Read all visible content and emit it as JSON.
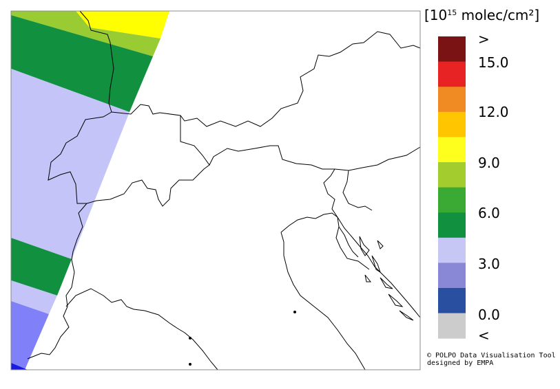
{
  "legend": {
    "title_prefix": "[10",
    "title_exp": "15",
    "title_suffix": " molec/cm²]",
    "over_label": ">",
    "under_label": "<",
    "tick_labels": [
      "15.0",
      "12.0",
      "9.0",
      "6.0",
      "3.0",
      "0.0"
    ],
    "colors": [
      "#7a1414",
      "#e82323",
      "#f08a23",
      "#ffc600",
      "#ffff1e",
      "#a3cc2e",
      "#3aaa35",
      "#119140",
      "#c7c7f5",
      "#8888d7",
      "#284fa0",
      "#cccccc"
    ]
  },
  "credit": {
    "line1": "© POLPO Data Visualisation Tool",
    "line2": "designed by EMPA"
  }
}
